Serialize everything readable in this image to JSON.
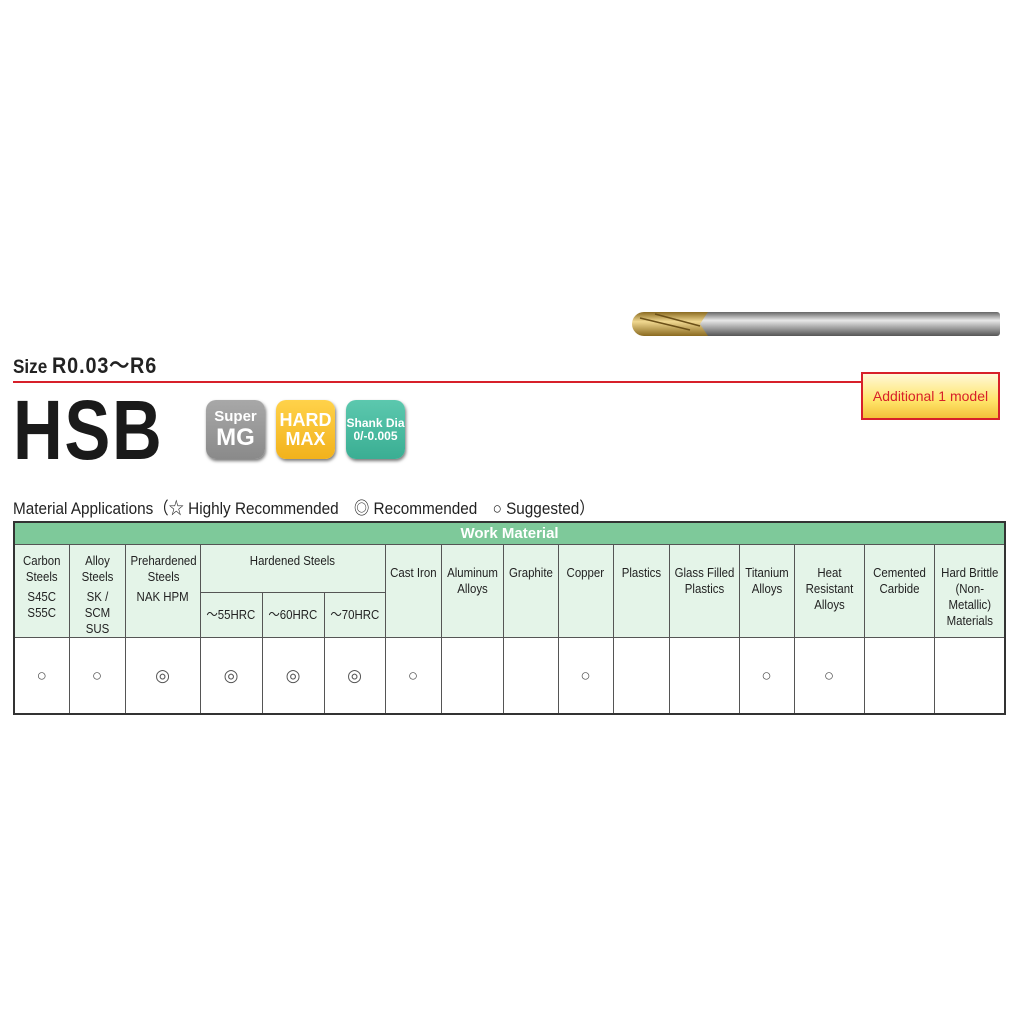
{
  "header": {
    "size_label": "Size",
    "size_value": "R0.03～R6",
    "product": "HSB",
    "callout": "Additional 1 model"
  },
  "badges": [
    {
      "line1": "Super",
      "line2": "MG",
      "color": "#999999"
    },
    {
      "line1": "HARD",
      "line2": "MAX",
      "color": "#f5be2c"
    },
    {
      "line1": "Shank Dia",
      "line2": "0/-0.005",
      "color": "#4bbca0"
    }
  ],
  "legend": "Material Applications（☆ Highly Recommended　◎ Recommended　○ Suggested）",
  "table": {
    "title": "Work Material",
    "columns": [
      {
        "name": "Carbon Steels",
        "sub": "S45C S55C",
        "mark": "○"
      },
      {
        "name": "Alloy Steels",
        "sub": "SK / SCM SUS",
        "mark": "○"
      },
      {
        "name": "Prehardened Steels",
        "sub": "NAK HPM",
        "mark": "◎"
      },
      {
        "name": "Hardened Steels"
      },
      {
        "name": "Cast Iron",
        "mark": "○"
      },
      {
        "name": "Aluminum Alloys",
        "mark": ""
      },
      {
        "name": "Graphite",
        "mark": ""
      },
      {
        "name": "Copper",
        "mark": "○"
      },
      {
        "name": "Plastics",
        "mark": ""
      },
      {
        "name": "Glass Filled Plastics",
        "mark": ""
      },
      {
        "name": "Titanium Alloys",
        "mark": "○"
      },
      {
        "name": "Heat Resistant Alloys",
        "mark": "○"
      },
      {
        "name": "Cemented Carbide",
        "mark": ""
      },
      {
        "name": "Hard Brittle (Non-Metallic) Materials",
        "mark": ""
      }
    ],
    "hardened": [
      {
        "label": "～55HRC",
        "mark": "◎"
      },
      {
        "label": "～60HRC",
        "mark": "◎"
      },
      {
        "label": "～70HRC",
        "mark": "◎"
      }
    ]
  }
}
